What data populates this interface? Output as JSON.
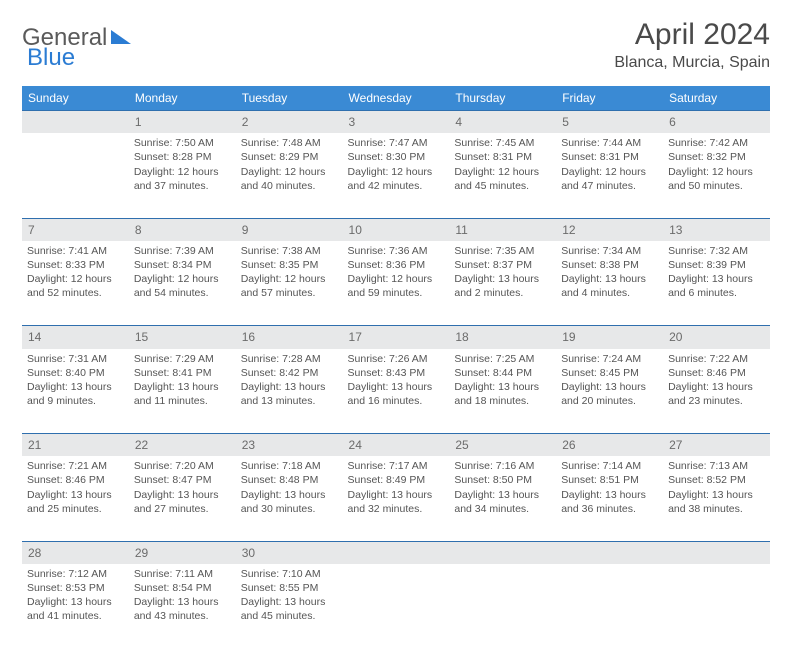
{
  "logo": {
    "part1": "General",
    "part2": "Blue"
  },
  "title": {
    "month": "April 2024",
    "location": "Blanca, Murcia, Spain"
  },
  "colors": {
    "header_bg": "#3a8ad4",
    "header_text": "#ffffff",
    "daynum_bg": "#e7e8e9",
    "divider": "#2f6fae",
    "body_text": "#555555",
    "page_bg": "#ffffff"
  },
  "weekdays": [
    "Sunday",
    "Monday",
    "Tuesday",
    "Wednesday",
    "Thursday",
    "Friday",
    "Saturday"
  ],
  "weeks": [
    [
      null,
      {
        "n": "1",
        "sr": "Sunrise: 7:50 AM",
        "ss": "Sunset: 8:28 PM",
        "d1": "Daylight: 12 hours",
        "d2": "and 37 minutes."
      },
      {
        "n": "2",
        "sr": "Sunrise: 7:48 AM",
        "ss": "Sunset: 8:29 PM",
        "d1": "Daylight: 12 hours",
        "d2": "and 40 minutes."
      },
      {
        "n": "3",
        "sr": "Sunrise: 7:47 AM",
        "ss": "Sunset: 8:30 PM",
        "d1": "Daylight: 12 hours",
        "d2": "and 42 minutes."
      },
      {
        "n": "4",
        "sr": "Sunrise: 7:45 AM",
        "ss": "Sunset: 8:31 PM",
        "d1": "Daylight: 12 hours",
        "d2": "and 45 minutes."
      },
      {
        "n": "5",
        "sr": "Sunrise: 7:44 AM",
        "ss": "Sunset: 8:31 PM",
        "d1": "Daylight: 12 hours",
        "d2": "and 47 minutes."
      },
      {
        "n": "6",
        "sr": "Sunrise: 7:42 AM",
        "ss": "Sunset: 8:32 PM",
        "d1": "Daylight: 12 hours",
        "d2": "and 50 minutes."
      }
    ],
    [
      {
        "n": "7",
        "sr": "Sunrise: 7:41 AM",
        "ss": "Sunset: 8:33 PM",
        "d1": "Daylight: 12 hours",
        "d2": "and 52 minutes."
      },
      {
        "n": "8",
        "sr": "Sunrise: 7:39 AM",
        "ss": "Sunset: 8:34 PM",
        "d1": "Daylight: 12 hours",
        "d2": "and 54 minutes."
      },
      {
        "n": "9",
        "sr": "Sunrise: 7:38 AM",
        "ss": "Sunset: 8:35 PM",
        "d1": "Daylight: 12 hours",
        "d2": "and 57 minutes."
      },
      {
        "n": "10",
        "sr": "Sunrise: 7:36 AM",
        "ss": "Sunset: 8:36 PM",
        "d1": "Daylight: 12 hours",
        "d2": "and 59 minutes."
      },
      {
        "n": "11",
        "sr": "Sunrise: 7:35 AM",
        "ss": "Sunset: 8:37 PM",
        "d1": "Daylight: 13 hours",
        "d2": "and 2 minutes."
      },
      {
        "n": "12",
        "sr": "Sunrise: 7:34 AM",
        "ss": "Sunset: 8:38 PM",
        "d1": "Daylight: 13 hours",
        "d2": "and 4 minutes."
      },
      {
        "n": "13",
        "sr": "Sunrise: 7:32 AM",
        "ss": "Sunset: 8:39 PM",
        "d1": "Daylight: 13 hours",
        "d2": "and 6 minutes."
      }
    ],
    [
      {
        "n": "14",
        "sr": "Sunrise: 7:31 AM",
        "ss": "Sunset: 8:40 PM",
        "d1": "Daylight: 13 hours",
        "d2": "and 9 minutes."
      },
      {
        "n": "15",
        "sr": "Sunrise: 7:29 AM",
        "ss": "Sunset: 8:41 PM",
        "d1": "Daylight: 13 hours",
        "d2": "and 11 minutes."
      },
      {
        "n": "16",
        "sr": "Sunrise: 7:28 AM",
        "ss": "Sunset: 8:42 PM",
        "d1": "Daylight: 13 hours",
        "d2": "and 13 minutes."
      },
      {
        "n": "17",
        "sr": "Sunrise: 7:26 AM",
        "ss": "Sunset: 8:43 PM",
        "d1": "Daylight: 13 hours",
        "d2": "and 16 minutes."
      },
      {
        "n": "18",
        "sr": "Sunrise: 7:25 AM",
        "ss": "Sunset: 8:44 PM",
        "d1": "Daylight: 13 hours",
        "d2": "and 18 minutes."
      },
      {
        "n": "19",
        "sr": "Sunrise: 7:24 AM",
        "ss": "Sunset: 8:45 PM",
        "d1": "Daylight: 13 hours",
        "d2": "and 20 minutes."
      },
      {
        "n": "20",
        "sr": "Sunrise: 7:22 AM",
        "ss": "Sunset: 8:46 PM",
        "d1": "Daylight: 13 hours",
        "d2": "and 23 minutes."
      }
    ],
    [
      {
        "n": "21",
        "sr": "Sunrise: 7:21 AM",
        "ss": "Sunset: 8:46 PM",
        "d1": "Daylight: 13 hours",
        "d2": "and 25 minutes."
      },
      {
        "n": "22",
        "sr": "Sunrise: 7:20 AM",
        "ss": "Sunset: 8:47 PM",
        "d1": "Daylight: 13 hours",
        "d2": "and 27 minutes."
      },
      {
        "n": "23",
        "sr": "Sunrise: 7:18 AM",
        "ss": "Sunset: 8:48 PM",
        "d1": "Daylight: 13 hours",
        "d2": "and 30 minutes."
      },
      {
        "n": "24",
        "sr": "Sunrise: 7:17 AM",
        "ss": "Sunset: 8:49 PM",
        "d1": "Daylight: 13 hours",
        "d2": "and 32 minutes."
      },
      {
        "n": "25",
        "sr": "Sunrise: 7:16 AM",
        "ss": "Sunset: 8:50 PM",
        "d1": "Daylight: 13 hours",
        "d2": "and 34 minutes."
      },
      {
        "n": "26",
        "sr": "Sunrise: 7:14 AM",
        "ss": "Sunset: 8:51 PM",
        "d1": "Daylight: 13 hours",
        "d2": "and 36 minutes."
      },
      {
        "n": "27",
        "sr": "Sunrise: 7:13 AM",
        "ss": "Sunset: 8:52 PM",
        "d1": "Daylight: 13 hours",
        "d2": "and 38 minutes."
      }
    ],
    [
      {
        "n": "28",
        "sr": "Sunrise: 7:12 AM",
        "ss": "Sunset: 8:53 PM",
        "d1": "Daylight: 13 hours",
        "d2": "and 41 minutes."
      },
      {
        "n": "29",
        "sr": "Sunrise: 7:11 AM",
        "ss": "Sunset: 8:54 PM",
        "d1": "Daylight: 13 hours",
        "d2": "and 43 minutes."
      },
      {
        "n": "30",
        "sr": "Sunrise: 7:10 AM",
        "ss": "Sunset: 8:55 PM",
        "d1": "Daylight: 13 hours",
        "d2": "and 45 minutes."
      },
      null,
      null,
      null,
      null
    ]
  ]
}
